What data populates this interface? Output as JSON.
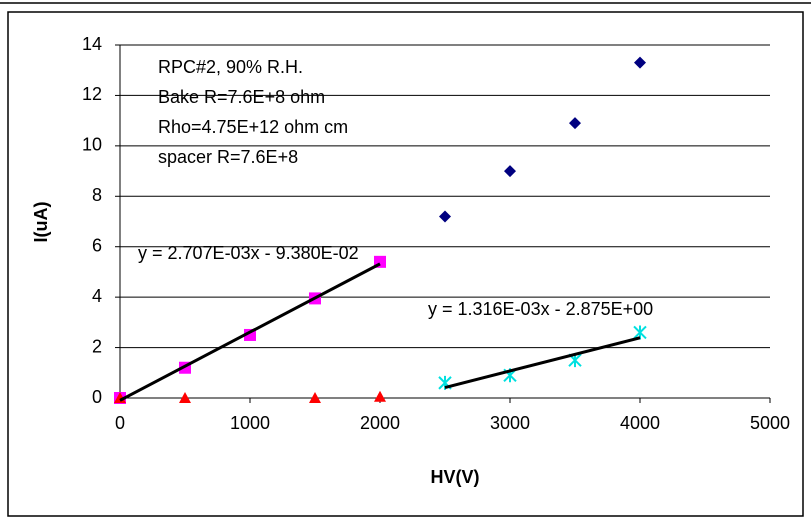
{
  "chart_data": {
    "type": "scatter",
    "x_label": "HV(V)",
    "y_label": "I(uA)",
    "xlim": [
      0,
      5000
    ],
    "xticks": [
      0,
      1000,
      2000,
      3000,
      4000,
      5000
    ],
    "ylim": [
      0,
      14
    ],
    "yticks": [
      0,
      2,
      4,
      6,
      8,
      10,
      12,
      14
    ],
    "grid": true,
    "annotations": [
      "RPC#2, 90% R.H.",
      "Bake R=7.6E+8 ohm",
      "Rho=4.75E+12 ohm cm",
      "spacer R=7.6E+8",
      "y = 2.707E-03x - 9.380E-02",
      "y = 1.316E-03x - 2.875E+00"
    ],
    "series": [
      {
        "color": "#000080",
        "marker": "diamond",
        "x": [
          2500,
          3000,
          3500,
          4000
        ],
        "values": [
          7.2,
          9.0,
          10.9,
          13.3
        ]
      },
      {
        "color": "#ff00ff",
        "marker": "square",
        "x": [
          0,
          500,
          1000,
          1500,
          2000
        ],
        "values": [
          0,
          1.2,
          2.5,
          3.95,
          5.4
        ]
      },
      {
        "color": "#ff0000",
        "marker": "triangle",
        "x": [
          0,
          500,
          1500,
          2000
        ],
        "values": [
          0,
          0,
          0,
          0.05
        ]
      },
      {
        "color": "#00e0e0",
        "marker": "star",
        "x": [
          2500,
          3000,
          3500,
          4000
        ],
        "values": [
          0.6,
          0.9,
          1.5,
          2.6
        ]
      },
      {
        "color": "#000000",
        "marker": "line",
        "x": [
          0,
          2000
        ],
        "values": [
          -0.094,
          5.32
        ]
      },
      {
        "color": "#000000",
        "marker": "line",
        "x": [
          2500,
          4000
        ],
        "values": [
          0.415,
          2.389
        ]
      }
    ]
  }
}
